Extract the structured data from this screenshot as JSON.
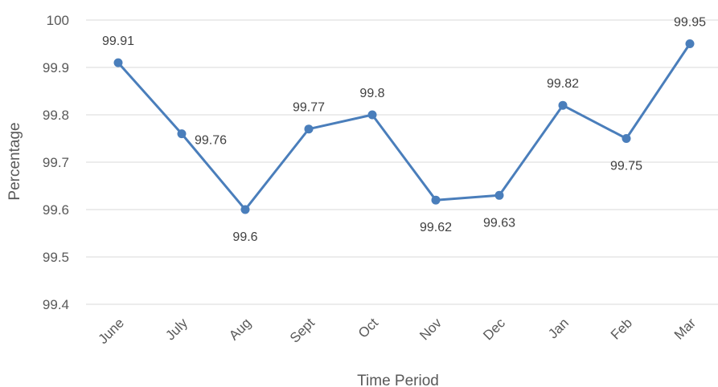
{
  "chart_data": {
    "type": "line",
    "title": "",
    "xlabel": "Time Period",
    "ylabel": "Percentage",
    "categories": [
      "June",
      "July",
      "Aug",
      "Sept",
      "Oct",
      "Nov",
      "Dec",
      "Jan",
      "Feb",
      "Mar"
    ],
    "series": [
      {
        "values": [
          99.91,
          99.76,
          99.6,
          99.77,
          99.8,
          99.62,
          99.63,
          99.82,
          99.75,
          99.95
        ],
        "data_labels": [
          "99.91",
          "99.76",
          "99.6",
          "99.77",
          "99.8",
          "99.62",
          "99.63",
          "99.82",
          "99.75",
          "99.95"
        ]
      }
    ],
    "ylim": [
      99.4,
      100
    ],
    "yticks": [
      99.4,
      99.5,
      99.6,
      99.7,
      99.8,
      99.9,
      100
    ],
    "ytick_labels": [
      "99.4",
      "99.5",
      "99.6",
      "99.7",
      "99.8",
      "99.9",
      "100"
    ],
    "grid": true,
    "legend": "none",
    "line_color": "#4a7ebb",
    "marker_color": "#4a7ebb",
    "grid_color": "#d9d9d9",
    "text_color": "#595959"
  }
}
